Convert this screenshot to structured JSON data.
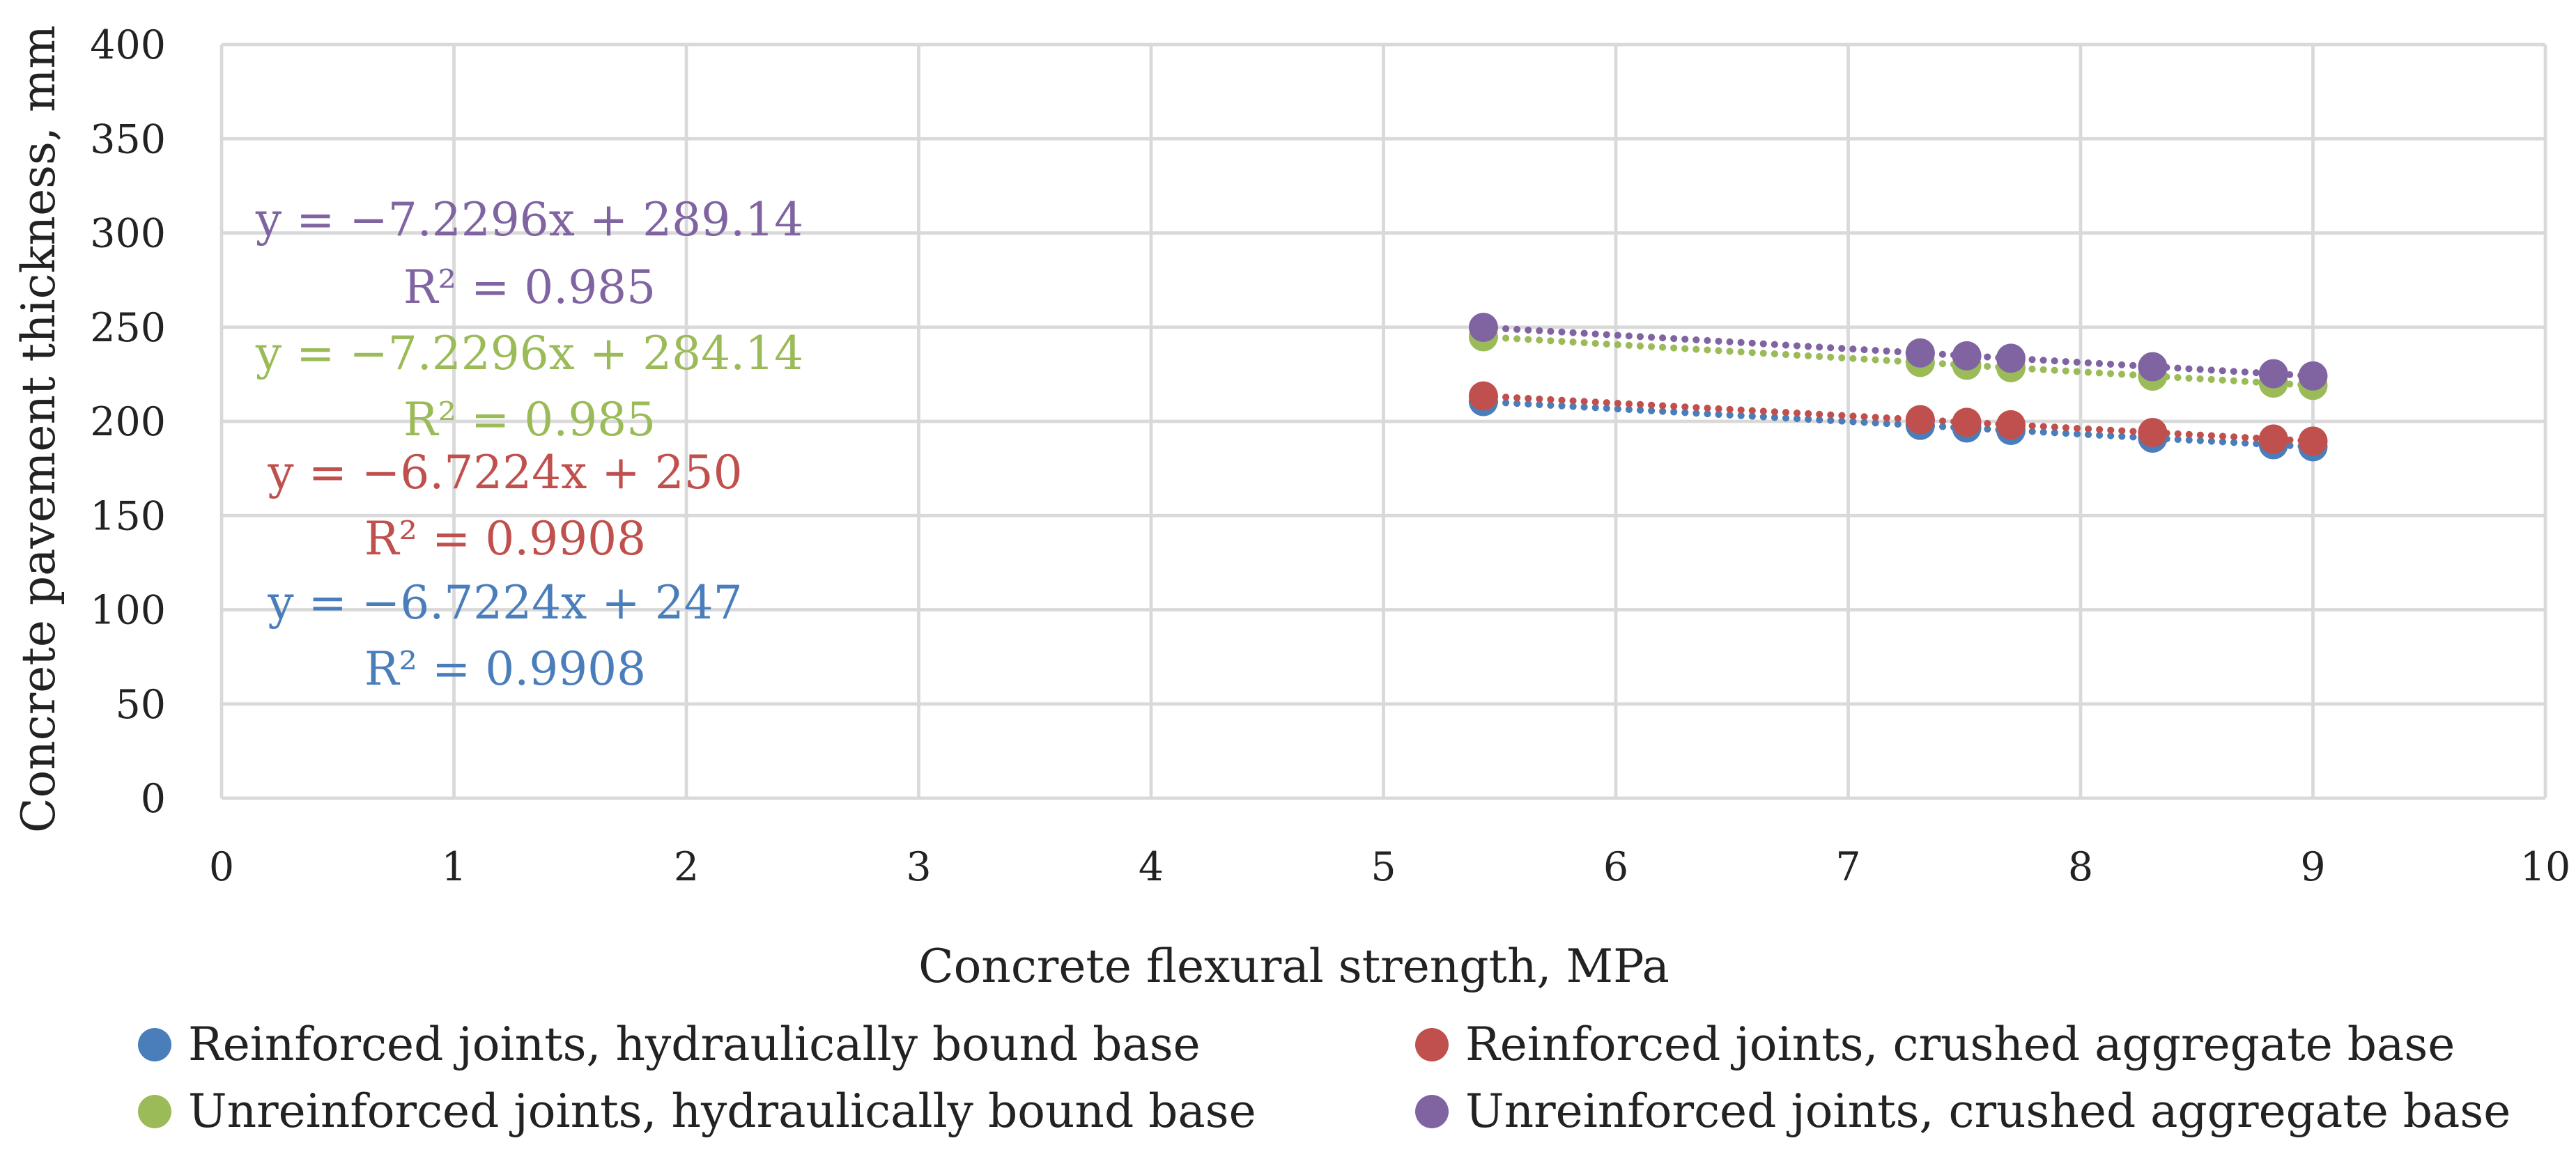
{
  "chart_data": {
    "type": "scatter",
    "title": "",
    "xlabel": "Concrete flexural strength, MPa",
    "ylabel": "Concrete pavement thickness, mm",
    "xlim": [
      0,
      10
    ],
    "ylim": [
      0,
      400
    ],
    "x_ticks": [
      0,
      1,
      2,
      3,
      4,
      5,
      6,
      7,
      8,
      9,
      10
    ],
    "y_ticks": [
      0,
      50,
      100,
      150,
      200,
      250,
      300,
      350,
      400
    ],
    "x_tick_labels": [
      "0",
      "1",
      "2",
      "3",
      "4",
      "5",
      "6",
      "7",
      "8",
      "9",
      "10"
    ],
    "y_tick_labels": [
      "0",
      "50",
      "100",
      "150",
      "200",
      "250",
      "300",
      "350",
      "400"
    ],
    "grid": true,
    "legend_position": "bottom",
    "series": [
      {
        "name": "Reinforced joints, hydraulically bound base",
        "color": "#4a7ebb",
        "x": [
          5.43,
          7.31,
          7.51,
          7.7,
          8.31,
          8.83,
          9.0
        ],
        "y": [
          210.5,
          197.9,
          196.5,
          195.2,
          191.1,
          187.6,
          186.5
        ],
        "trendline": {
          "slope": -6.7224,
          "intercept": 247,
          "equation": "y = −6.7224x + 247",
          "r2": "R² = 0.9908"
        }
      },
      {
        "name": "Reinforced joints, crushed aggregate base",
        "color": "#c0504d",
        "x": [
          5.43,
          7.31,
          7.51,
          7.7,
          8.31,
          8.83,
          9.0
        ],
        "y": [
          213.5,
          200.9,
          199.5,
          198.2,
          194.1,
          190.6,
          189.5
        ],
        "trendline": {
          "slope": -6.7224,
          "intercept": 250,
          "equation": "y = −6.7224x + 250",
          "r2": "R² = 0.9908"
        }
      },
      {
        "name": "Unreinforced joints, hydraulically bound base",
        "color": "#9bbb59",
        "x": [
          5.43,
          7.31,
          7.51,
          7.7,
          8.31,
          8.83,
          9.0
        ],
        "y": [
          244.9,
          231.3,
          229.8,
          228.5,
          224.0,
          220.3,
          219.1
        ],
        "trendline": {
          "slope": -7.2296,
          "intercept": 284.14,
          "equation": "y = −7.2296x + 284.14",
          "r2": "R² = 0.985"
        }
      },
      {
        "name": "Unreinforced joints, crushed aggregate base",
        "color": "#8064a2",
        "x": [
          5.43,
          7.31,
          7.51,
          7.7,
          8.31,
          8.83,
          9.0
        ],
        "y": [
          249.9,
          236.3,
          234.8,
          233.5,
          229.0,
          225.3,
          224.1
        ],
        "trendline": {
          "slope": -7.2296,
          "intercept": 289.14,
          "equation": "y = −7.2296x + 289.14",
          "r2": "R² = 0.985"
        }
      }
    ]
  }
}
